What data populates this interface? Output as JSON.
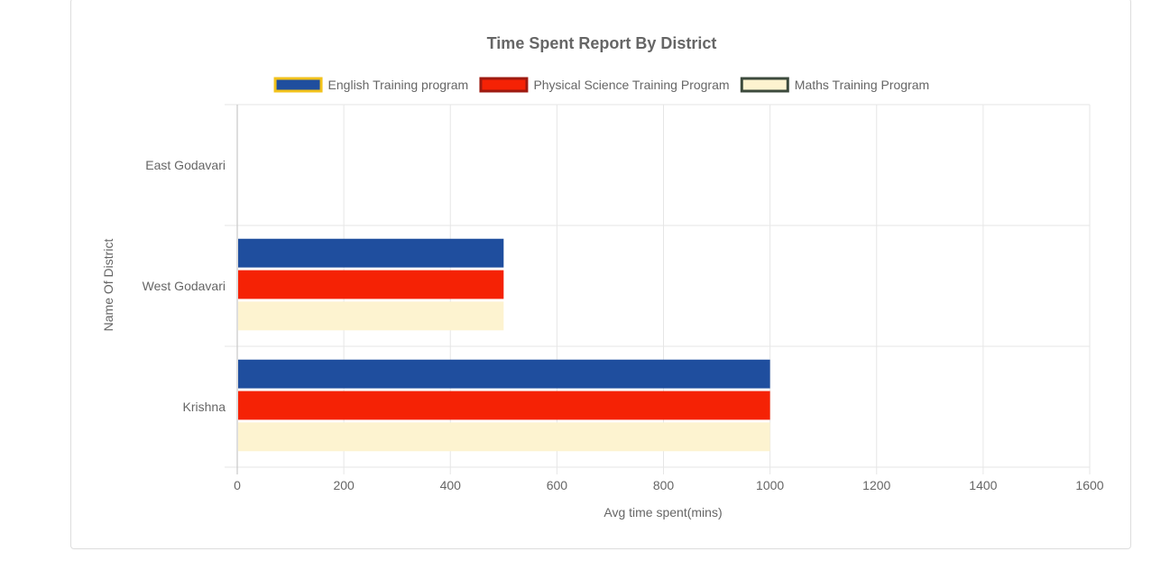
{
  "chart_data": {
    "type": "bar",
    "orientation": "horizontal",
    "title": "Time Spent Report By District",
    "xlabel": "Avg time spent(mins)",
    "ylabel": "Name Of District",
    "xlim": [
      0,
      1600
    ],
    "xticks": [
      "0",
      "200",
      "400",
      "600",
      "800",
      "1000",
      "1200",
      "1400",
      "1600"
    ],
    "categories": [
      "East Godavari",
      "West Godavari",
      "Krishna"
    ],
    "grid": true,
    "legend_position": "top",
    "series": [
      {
        "name": "English Training program",
        "values": [
          0,
          500,
          1000
        ],
        "color": "#1f4e9e",
        "border": "#f2c21b"
      },
      {
        "name": "Physical Science Training Program",
        "values": [
          0,
          500,
          1000
        ],
        "color": "#f52205",
        "border": "#9e1a10"
      },
      {
        "name": "Maths Training Program",
        "values": [
          0,
          500,
          1000
        ],
        "color": "#fdf3d0",
        "border": "#3c4a3c"
      }
    ]
  }
}
